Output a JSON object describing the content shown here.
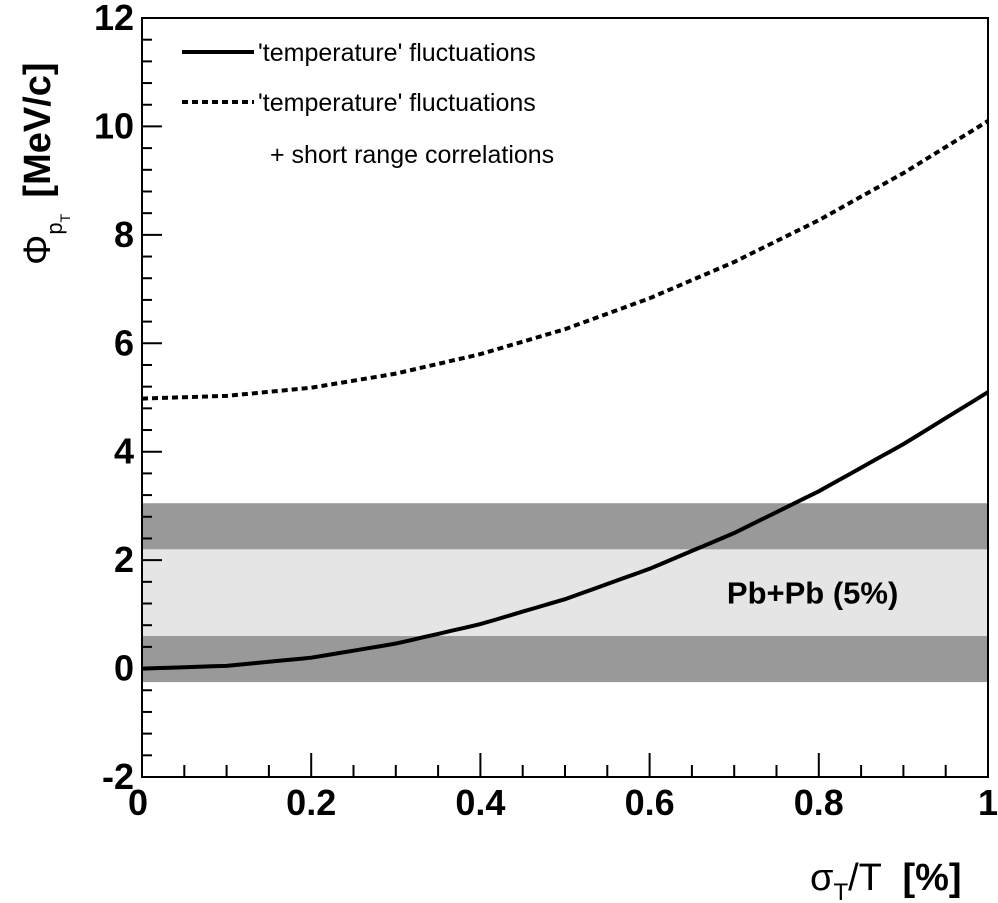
{
  "chart_data": {
    "type": "line",
    "title": "",
    "xlabel": {
      "main": "σ",
      "sub": "T",
      "rest": "/T",
      "unit": "[%]"
    },
    "ylabel": {
      "main": "Φ",
      "sub": "p",
      "subsub": "T",
      "unit": "[MeV/c]"
    },
    "xlim": [
      0,
      1
    ],
    "ylim": [
      -2,
      12
    ],
    "xticks": [
      {
        "value": 0,
        "label": "0"
      },
      {
        "value": 0.2,
        "label": "0.2"
      },
      {
        "value": 0.4,
        "label": "0.4"
      },
      {
        "value": 0.6,
        "label": "0.6"
      },
      {
        "value": 0.8,
        "label": "0.8"
      },
      {
        "value": 1,
        "label": "1"
      }
    ],
    "yticks": [
      {
        "value": -2,
        "label": "-2"
      },
      {
        "value": 0,
        "label": "0"
      },
      {
        "value": 2,
        "label": "2"
      },
      {
        "value": 4,
        "label": "4"
      },
      {
        "value": 6,
        "label": "6"
      },
      {
        "value": 8,
        "label": "8"
      },
      {
        "value": 10,
        "label": "10"
      },
      {
        "value": 12,
        "label": "12"
      }
    ],
    "grid": false,
    "legend_position": "top-left",
    "series": [
      {
        "name": "'temperature' fluctuations",
        "style": "solid",
        "color": "#000000",
        "x": [
          0,
          0.1,
          0.2,
          0.3,
          0.4,
          0.5,
          0.6,
          0.7,
          0.8,
          0.9,
          1.0
        ],
        "y": [
          0,
          0.05,
          0.2,
          0.46,
          0.82,
          1.28,
          1.84,
          2.5,
          3.27,
          4.14,
          5.1
        ]
      },
      {
        "name": "'temperature' fluctuations",
        "name_line2": "+ short range correlations",
        "style": "dashed",
        "color": "#000000",
        "x": [
          0,
          0.1,
          0.2,
          0.3,
          0.4,
          0.5,
          0.6,
          0.7,
          0.8,
          0.9,
          1.0
        ],
        "y": [
          4.98,
          5.03,
          5.18,
          5.44,
          5.8,
          6.26,
          6.83,
          7.5,
          8.27,
          9.14,
          10.1
        ]
      }
    ],
    "bands": [
      {
        "ymin": -0.25,
        "ymax": 3.05,
        "color": "#999999"
      },
      {
        "ymin": 0.6,
        "ymax": 2.2,
        "color": "#e5e5e5"
      }
    ],
    "annotations": [
      {
        "text": "Pb+Pb (5%)",
        "x": 0.65,
        "y": 1.4
      }
    ]
  }
}
